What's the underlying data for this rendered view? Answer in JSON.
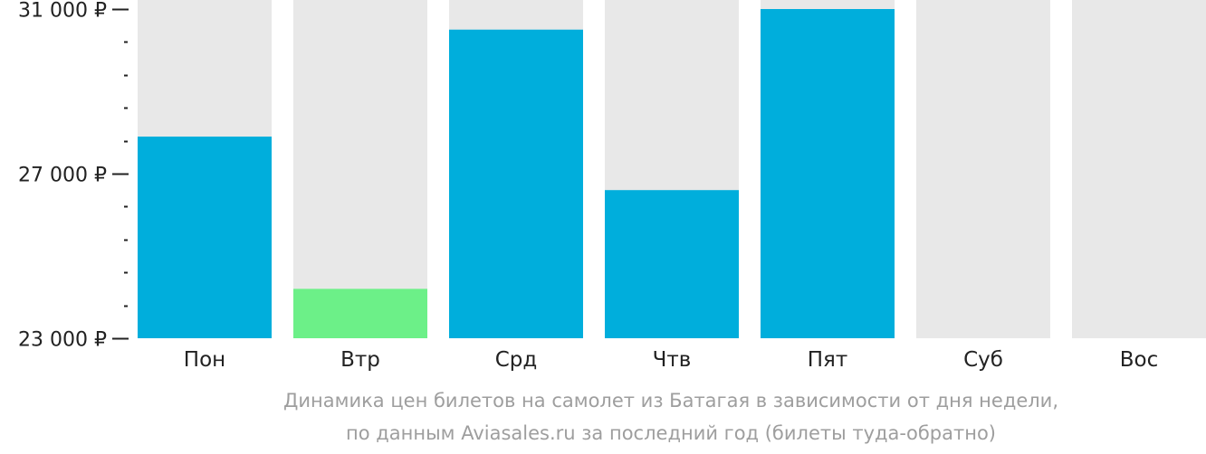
{
  "chart_data": {
    "type": "bar",
    "categories": [
      "Пон",
      "Втр",
      "Срд",
      "Чтв",
      "Пят",
      "Суб",
      "Вос"
    ],
    "values": [
      27900,
      24200,
      30500,
      26600,
      31000,
      null,
      null
    ],
    "highlight_index": 1,
    "ylim": [
      23000,
      31000
    ],
    "yticks_labeled": [
      "23 000 ₽",
      "27 000 ₽",
      "31 000 ₽"
    ],
    "yticks_labeled_values": [
      23000,
      27000,
      31000
    ],
    "minor_tick_step": 800,
    "colors": {
      "bar": "#00AEDC",
      "highlight": "#6CF088",
      "background_bar": "#E8E8E8",
      "axis_text": "#222222",
      "caption": "#9E9E9E"
    },
    "caption_line1": "Динамика цен билетов на самолет из Батагая в зависимости от дня недели,",
    "caption_line2": "по данным Aviasales.ru за последний год (билеты туда-обратно)"
  }
}
